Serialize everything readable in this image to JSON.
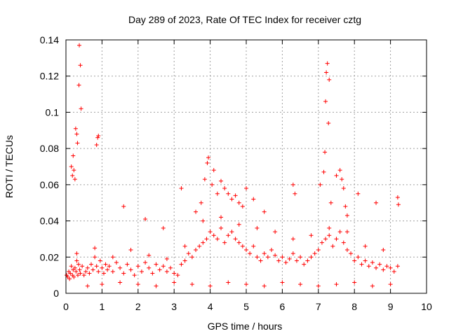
{
  "chart_data": {
    "type": "scatter",
    "title": "Day 289 of 2023, Rate Of TEC Index for receiver cztg",
    "xlabel": "GPS time / hours",
    "ylabel": "ROTI / TECUs",
    "xlim": [
      0,
      10
    ],
    "ylim": [
      0,
      0.14
    ],
    "xticks": [
      "0",
      "1",
      "2",
      "3",
      "4",
      "5",
      "6",
      "7",
      "8",
      "9",
      "10"
    ],
    "yticks": [
      "0",
      "0.02",
      "0.04",
      "0.06",
      "0.08",
      "0.1",
      "0.12",
      "0.14"
    ],
    "grid": true,
    "marker": "+",
    "marker_color": "#ff0000",
    "series": [
      {
        "name": "ROTI",
        "x": [
          0.02,
          0.05,
          0.08,
          0.1,
          0.12,
          0.15,
          0.18,
          0.2,
          0.22,
          0.25,
          0.28,
          0.3,
          0.33,
          0.35,
          0.38,
          0.4,
          0.45,
          0.5,
          0.55,
          0.6,
          0.65,
          0.7,
          0.75,
          0.8,
          0.85,
          0.9,
          0.95,
          1.0,
          1.05,
          1.1,
          1.15,
          1.2,
          1.3,
          1.4,
          1.5,
          1.6,
          1.7,
          1.8,
          1.9,
          2.0,
          2.1,
          2.2,
          2.3,
          2.4,
          2.5,
          2.6,
          2.7,
          2.8,
          2.9,
          3.0,
          3.1,
          3.2,
          3.3,
          3.4,
          3.5,
          3.6,
          3.7,
          3.8,
          3.9,
          4.0,
          4.1,
          4.2,
          4.3,
          4.4,
          4.5,
          4.6,
          4.7,
          4.8,
          4.9,
          5.0,
          5.1,
          5.2,
          5.3,
          5.4,
          5.5,
          5.6,
          5.7,
          5.8,
          5.9,
          6.0,
          6.1,
          6.2,
          6.3,
          6.4,
          6.5,
          6.6,
          6.7,
          6.8,
          6.9,
          7.0,
          7.1,
          7.2,
          7.3,
          7.4,
          7.5,
          7.6,
          7.7,
          7.8,
          7.9,
          8.0,
          8.1,
          8.2,
          8.3,
          8.4,
          8.5,
          8.6,
          8.7,
          8.8,
          8.9,
          9.0,
          9.1,
          9.2,
          0.15,
          0.18,
          0.2,
          0.22,
          0.25,
          0.27,
          0.3,
          0.32,
          0.36,
          0.37,
          0.4,
          0.42,
          0.85,
          0.88,
          0.9,
          1.6,
          2.2,
          2.7,
          3.2,
          3.6,
          3.75,
          3.85,
          3.92,
          3.95,
          4.05,
          4.1,
          4.2,
          4.3,
          4.4,
          4.5,
          4.6,
          4.7,
          4.8,
          4.9,
          5.0,
          5.2,
          5.5,
          6.3,
          6.35,
          7.05,
          7.15,
          7.18,
          7.2,
          7.22,
          7.25,
          7.28,
          7.3,
          7.35,
          7.5,
          7.6,
          7.65,
          7.7,
          7.75,
          7.8,
          8.1,
          8.6,
          9.2,
          9.22,
          0.6,
          1.0,
          1.5,
          2.0,
          2.5,
          3.0,
          3.5,
          4.0,
          4.5,
          5.0,
          5.5,
          6.0,
          6.5,
          7.0,
          7.5,
          8.0,
          8.5,
          9.0,
          0.3,
          0.8,
          1.3,
          1.8,
          2.3,
          2.8,
          3.3,
          3.8,
          4.3,
          4.8,
          5.3,
          5.8,
          6.3,
          6.8,
          7.3,
          7.8,
          8.3,
          8.8
        ],
        "y": [
          0.01,
          0.009,
          0.012,
          0.008,
          0.011,
          0.015,
          0.01,
          0.013,
          0.009,
          0.014,
          0.012,
          0.018,
          0.01,
          0.016,
          0.013,
          0.011,
          0.015,
          0.01,
          0.012,
          0.014,
          0.011,
          0.016,
          0.013,
          0.02,
          0.015,
          0.012,
          0.018,
          0.014,
          0.011,
          0.016,
          0.013,
          0.015,
          0.012,
          0.017,
          0.014,
          0.011,
          0.016,
          0.013,
          0.01,
          0.015,
          0.012,
          0.017,
          0.014,
          0.011,
          0.016,
          0.013,
          0.015,
          0.012,
          0.014,
          0.011,
          0.01,
          0.016,
          0.018,
          0.022,
          0.02,
          0.024,
          0.026,
          0.028,
          0.03,
          0.034,
          0.032,
          0.03,
          0.036,
          0.028,
          0.032,
          0.034,
          0.03,
          0.028,
          0.026,
          0.024,
          0.022,
          0.026,
          0.02,
          0.018,
          0.022,
          0.02,
          0.024,
          0.021,
          0.018,
          0.02,
          0.017,
          0.019,
          0.022,
          0.018,
          0.02,
          0.016,
          0.018,
          0.02,
          0.022,
          0.024,
          0.028,
          0.03,
          0.032,
          0.026,
          0.03,
          0.034,
          0.028,
          0.024,
          0.022,
          0.018,
          0.02,
          0.016,
          0.018,
          0.015,
          0.017,
          0.014,
          0.016,
          0.013,
          0.015,
          0.014,
          0.012,
          0.015,
          0.07,
          0.065,
          0.076,
          0.068,
          0.063,
          0.091,
          0.088,
          0.083,
          0.115,
          0.137,
          0.126,
          0.102,
          0.082,
          0.086,
          0.087,
          0.048,
          0.041,
          0.036,
          0.058,
          0.045,
          0.05,
          0.063,
          0.072,
          0.075,
          0.06,
          0.068,
          0.055,
          0.062,
          0.058,
          0.055,
          0.052,
          0.054,
          0.05,
          0.048,
          0.058,
          0.052,
          0.045,
          0.06,
          0.055,
          0.06,
          0.067,
          0.078,
          0.106,
          0.122,
          0.127,
          0.094,
          0.118,
          0.05,
          0.065,
          0.068,
          0.063,
          0.058,
          0.048,
          0.043,
          0.055,
          0.05,
          0.053,
          0.049,
          0.004,
          0.005,
          0.006,
          0.005,
          0.004,
          0.006,
          0.005,
          0.004,
          0.006,
          0.005,
          0.004,
          0.006,
          0.005,
          0.004,
          0.005,
          0.006,
          0.004,
          0.005,
          0.022,
          0.025,
          0.02,
          0.024,
          0.021,
          0.019,
          0.026,
          0.04,
          0.042,
          0.038,
          0.036,
          0.034,
          0.03,
          0.032,
          0.036,
          0.034,
          0.026,
          0.024
        ]
      }
    ]
  }
}
